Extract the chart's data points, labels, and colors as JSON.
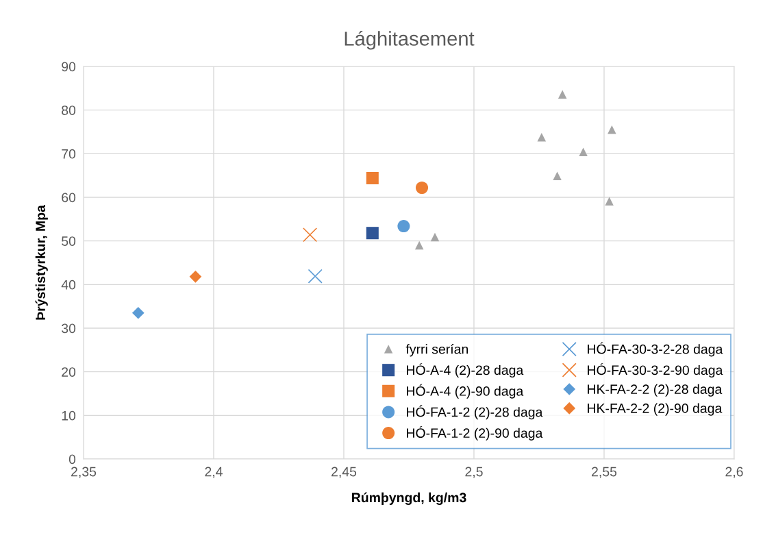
{
  "chart_data": {
    "type": "scatter",
    "title": "Lághitasement",
    "xlabel": "Rúmþyngd, kg/m3",
    "ylabel": "Þrýstistyrkur, Mpa",
    "xlim": [
      2.35,
      2.6
    ],
    "xticks": [
      {
        "value": 2.35,
        "label": "2,35"
      },
      {
        "value": 2.4,
        "label": "2,4"
      },
      {
        "value": 2.45,
        "label": "2,45"
      },
      {
        "value": 2.5,
        "label": "2,5"
      },
      {
        "value": 2.55,
        "label": "2,55"
      },
      {
        "value": 2.6,
        "label": "2,6"
      }
    ],
    "ylim": [
      0,
      90
    ],
    "yticks": [
      0,
      10,
      20,
      30,
      40,
      50,
      60,
      70,
      80,
      90
    ],
    "grid": true,
    "legend": "bottom right",
    "series": [
      {
        "name": "fyrri serían",
        "color": "#a5a5a5",
        "marker": "triangle",
        "x": [
          2.534,
          2.526,
          2.553,
          2.542,
          2.532,
          2.552,
          2.479,
          2.485
        ],
        "values": [
          83.6,
          73.8,
          75.5,
          70.4,
          64.9,
          59.1,
          49.0,
          50.9
        ]
      },
      {
        "name": "HÓ-A-4 (2)-28 daga",
        "color": "#2f5597",
        "marker": "square",
        "x": [
          2.461
        ],
        "values": [
          51.8
        ]
      },
      {
        "name": "HÓ-A-4 (2)-90 daga",
        "color": "#ed7d31",
        "marker": "square",
        "x": [
          2.461
        ],
        "values": [
          64.4
        ]
      },
      {
        "name": "HÓ-FA-1-2 (2)-28 daga",
        "color": "#5b9bd5",
        "marker": "circle",
        "x": [
          2.473
        ],
        "values": [
          53.4
        ]
      },
      {
        "name": "HÓ-FA-1-2 (2)-90 daga",
        "color": "#ed7d31",
        "marker": "circle",
        "x": [
          2.48
        ],
        "values": [
          62.2
        ]
      },
      {
        "name": "HÓ-FA-30-3-2-28 daga",
        "color": "#5b9bd5",
        "marker": "cross",
        "x": [
          2.439
        ],
        "values": [
          41.9
        ]
      },
      {
        "name": "HÓ-FA-30-3-2-90 daga",
        "color": "#ed7d31",
        "marker": "cross",
        "x": [
          2.437
        ],
        "values": [
          51.4
        ]
      },
      {
        "name": "HK-FA-2-2 (2)-28 daga",
        "color": "#5b9bd5",
        "marker": "diamond",
        "x": [
          2.371
        ],
        "values": [
          33.5
        ]
      },
      {
        "name": "HK-FA-2-2 (2)-90 daga",
        "color": "#ed7d31",
        "marker": "diamond",
        "x": [
          2.393
        ],
        "values": [
          41.8
        ]
      }
    ]
  }
}
